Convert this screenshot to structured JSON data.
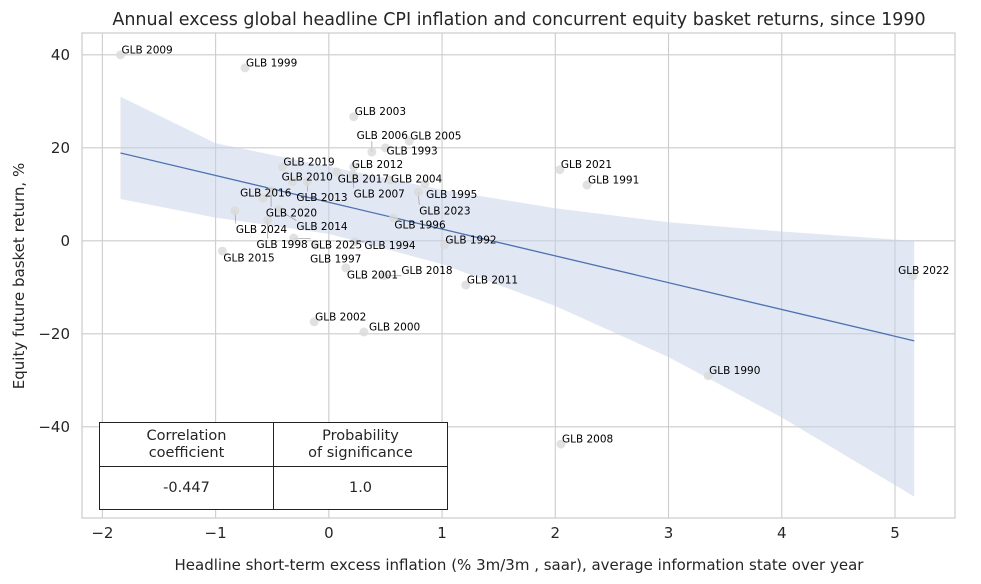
{
  "chart_data": {
    "type": "scatter",
    "title": "Annual excess global headline CPI inflation and concurrent equity basket returns, since 1990",
    "xlabel": "Headline short-term excess inflation (% 3m/3m , saar), average information state over year",
    "ylabel": "Equity future basket return, %",
    "xlim": [
      -2.18,
      5.53
    ],
    "ylim": [
      -59.6,
      44.7
    ],
    "xticks": [
      -2,
      -1,
      0,
      1,
      2,
      3,
      4,
      5
    ],
    "yticks": [
      -40,
      -20,
      0,
      20,
      40
    ],
    "xtick_labels": [
      "−2",
      "−1",
      "0",
      "1",
      "2",
      "3",
      "4",
      "5"
    ],
    "ytick_labels": [
      "−40",
      "−20",
      "0",
      "20",
      "40"
    ],
    "grid": true,
    "colors": {
      "points": "#d9d9d9",
      "line": "#4c72b0",
      "band": "#c5d1e8"
    },
    "points": [
      {
        "label": "GLB 2009",
        "x": -1.84,
        "y": 40.0
      },
      {
        "label": "GLB 1999",
        "x": -0.74,
        "y": 37.2
      },
      {
        "label": "GLB 2003",
        "x": 0.22,
        "y": 26.7
      },
      {
        "label": "GLB 2005",
        "x": 0.71,
        "y": 21.5
      },
      {
        "label": "GLB 1993",
        "x": 0.5,
        "y": 20.0
      },
      {
        "label": "GLB 2006",
        "x": 0.38,
        "y": 19.1
      },
      {
        "label": "GLB 2019",
        "x": -0.41,
        "y": 15.9
      },
      {
        "label": "GLB 2012",
        "x": 0.22,
        "y": 15.9
      },
      {
        "label": "GLB 2017",
        "x": 0.07,
        "y": 14.8
      },
      {
        "label": "GLB 2007",
        "x": 0.21,
        "y": 14.2
      },
      {
        "label": "GLB 2004",
        "x": 0.54,
        "y": 13.1
      },
      {
        "label": "GLB 1995",
        "x": 0.85,
        "y": 12.3
      },
      {
        "label": "GLB 2023",
        "x": 0.79,
        "y": 10.5
      },
      {
        "label": "GLB 2010",
        "x": -0.32,
        "y": 12.7
      },
      {
        "label": "GLB 2013",
        "x": -0.19,
        "y": 12.7
      },
      {
        "label": "GLB 2020",
        "x": -0.51,
        "y": 10.8
      },
      {
        "label": "GLB 2016",
        "x": -0.58,
        "y": 9.2
      },
      {
        "label": "GLB 2024",
        "x": -0.83,
        "y": 6.5
      },
      {
        "label": "GLB 2014",
        "x": -0.45,
        "y": 6.7
      },
      {
        "label": "GLB 1998",
        "x": -0.54,
        "y": 4.5
      },
      {
        "label": "GLB 1996",
        "x": 0.57,
        "y": 4.9
      },
      {
        "label": "GLB 2025",
        "x": -0.31,
        "y": 0.6
      },
      {
        "label": "GLB 1997",
        "x": -0.12,
        "y": -0.9
      },
      {
        "label": "GLB 1994",
        "x": 0.23,
        "y": -0.2
      },
      {
        "label": "GLB 1992",
        "x": 1.02,
        "y": -0.9
      },
      {
        "label": "GLB 2015",
        "x": -0.94,
        "y": -2.2
      },
      {
        "label": "GLB 2001",
        "x": 0.15,
        "y": -5.8
      },
      {
        "label": "GLB 2018",
        "x": 0.49,
        "y": -7.5
      },
      {
        "label": "GLB 2011",
        "x": 1.21,
        "y": -9.5
      },
      {
        "label": "GLB 2021",
        "x": 2.04,
        "y": 15.3
      },
      {
        "label": "GLB 1991",
        "x": 2.28,
        "y": 12.0
      },
      {
        "label": "GLB 2022",
        "x": 5.16,
        "y": -7.5
      },
      {
        "label": "GLB 2002",
        "x": -0.13,
        "y": -17.4
      },
      {
        "label": "GLB 2000",
        "x": 0.31,
        "y": -19.6
      },
      {
        "label": "GLB 1990",
        "x": 3.35,
        "y": -29.0
      },
      {
        "label": "GLB 2008",
        "x": 2.05,
        "y": -43.7
      }
    ],
    "regression": {
      "x": [
        -1.84,
        5.17
      ],
      "y": [
        18.9,
        -21.5
      ]
    },
    "confidence_band": {
      "x": [
        -1.84,
        -1,
        0,
        1,
        2,
        3,
        4,
        5.17
      ],
      "upper": [
        31,
        21,
        16,
        11,
        7,
        4,
        2,
        0
      ],
      "lower": [
        9,
        5,
        1.5,
        -5,
        -14,
        -25,
        -38,
        -55
      ]
    },
    "table": {
      "headers": [
        "Correlation\ncoefficient",
        "Probability\nof significance"
      ],
      "values": [
        "-0.447",
        "1.0"
      ]
    }
  }
}
